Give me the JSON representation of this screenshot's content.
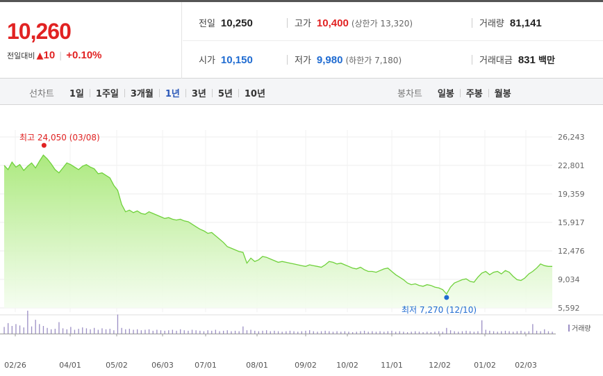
{
  "summary": {
    "current_price": "10,260",
    "change_label": "전일대비",
    "change_arrow": "▲",
    "change_value": "10",
    "change_rate": "+0.10%",
    "prev_close_label": "전일",
    "prev_close": "10,250",
    "open_label": "시가",
    "open": "10,150",
    "high_label": "고가",
    "high": "10,400",
    "upper_limit": "(상한가 13,320)",
    "low_label": "저가",
    "low": "9,980",
    "lower_limit": "(하한가 7,180)",
    "volume_label": "거래량",
    "volume": "81,141",
    "amount_label": "거래대금",
    "amount": "831",
    "amount_unit": "백만"
  },
  "line_tabs": {
    "label": "선차트",
    "items": [
      "1일",
      "1주일",
      "3개월",
      "1년",
      "3년",
      "5년",
      "10년"
    ],
    "active": "1년"
  },
  "candle_tabs": {
    "label": "봉차트",
    "items": [
      "일봉",
      "주봉",
      "월봉"
    ]
  },
  "colors": {
    "up": "#e12222",
    "down": "#1f6bd1",
    "line": "#6fd13b",
    "area_top": "#a8e878",
    "area_bottom": "#f4fdef",
    "volume_bar": "#9b8ec4"
  },
  "chart_data": {
    "type": "area",
    "ylim": [
      5592,
      26243
    ],
    "y_ticks": [
      "26,243",
      "22,801",
      "19,359",
      "15,917",
      "12,476",
      "9,034",
      "5,592"
    ],
    "x_ticks": [
      "02/26",
      "04/01",
      "05/02",
      "06/03",
      "07/01",
      "08/01",
      "09/02",
      "10/02",
      "11/01",
      "12/02",
      "01/02",
      "02/03"
    ],
    "series": [
      {
        "values": [
          22800,
          22300,
          23200,
          22600,
          22900,
          22200,
          22700,
          23100,
          22500,
          23300,
          24050,
          23600,
          23000,
          22300,
          21900,
          22500,
          23100,
          22900,
          22600,
          22300,
          22700,
          22900,
          22600,
          22400,
          21800,
          21900,
          21600,
          21300,
          20400,
          19800,
          18100,
          17200,
          17400,
          17100,
          17300,
          17000,
          16900,
          17200,
          17000,
          16800,
          16600,
          16400,
          16500,
          16300,
          16200,
          16300,
          16100,
          16000,
          15700,
          15400,
          15100,
          14900,
          14600,
          14700,
          14300,
          13900,
          13500,
          13000,
          12800,
          12600,
          12400,
          12300,
          11000,
          11600,
          11200,
          11400,
          11800,
          11700,
          11500,
          11300,
          11100,
          11200,
          11100,
          11000,
          10900,
          10800,
          10700,
          10600,
          10800,
          10700,
          10600,
          10500,
          10800,
          11200,
          11100,
          10900,
          11000,
          10800,
          10600,
          10400,
          10300,
          10500,
          10200,
          10000,
          10000,
          9900,
          10100,
          10300,
          10400,
          10000,
          9600,
          9300,
          9000,
          8600,
          8400,
          8500,
          8300,
          8200,
          8400,
          8300,
          8100,
          8000,
          7800,
          7270,
          8100,
          8600,
          8800,
          9000,
          9100,
          8800,
          8700,
          9300,
          9800,
          10000,
          9600,
          9900,
          10000,
          9700,
          10100,
          9900,
          9400,
          9000,
          8900,
          9200,
          9700,
          10000,
          10400,
          10900,
          10700,
          10600,
          10600
        ],
        "volume": [
          14,
          22,
          16,
          20,
          17,
          13,
          48,
          15,
          29,
          20,
          16,
          12,
          9,
          10,
          24,
          11,
          9,
          14,
          8,
          10,
          13,
          11,
          9,
          12,
          8,
          11,
          9,
          10,
          7,
          40,
          12,
          9,
          10,
          8,
          9,
          7,
          8,
          9,
          6,
          8,
          7,
          6,
          7,
          8,
          6,
          9,
          7,
          6,
          8,
          7,
          6,
          5,
          7,
          6,
          8,
          5,
          6,
          7,
          5,
          6,
          5,
          15,
          7,
          8,
          6,
          5,
          6,
          7,
          5,
          6,
          5,
          4,
          5,
          6,
          5,
          4,
          5,
          6,
          7,
          5,
          4,
          5,
          6,
          5,
          4,
          5,
          4,
          5,
          4,
          3,
          4,
          5,
          6,
          4,
          5,
          4,
          5,
          4,
          5,
          6,
          4,
          5,
          4,
          3,
          4,
          5,
          4,
          3,
          4,
          3,
          4,
          5,
          4,
          12,
          7,
          5,
          4,
          5,
          6,
          5,
          4,
          5,
          28,
          8,
          6,
          5,
          4,
          5,
          6,
          5,
          4,
          5,
          6,
          4,
          5,
          20,
          6,
          5,
          9,
          5,
          4
        ],
        "max_point": {
          "label": "최고 24,050 (03/08)",
          "value": 24050
        },
        "min_point": {
          "label": "최저 7,270 (12/10)",
          "value": 7270
        }
      }
    ],
    "volume_legend": "거래량"
  }
}
